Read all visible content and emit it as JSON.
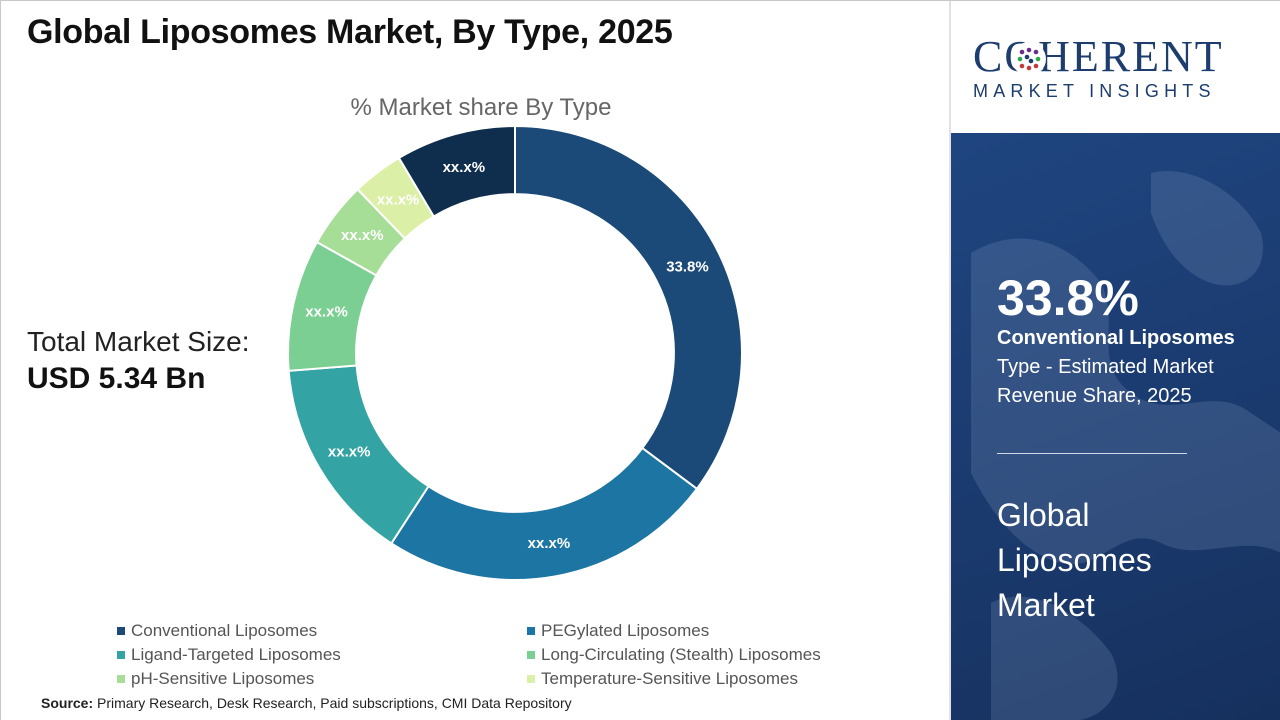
{
  "title": "Global Liposomes Market, By Type, 2025",
  "market_size": {
    "label": "Total Market Size:",
    "value": "USD 5.34 Bn"
  },
  "source": {
    "prefix": "Source:",
    "text": "Primary Research, Desk Research, Paid subscriptions, CMI Data Repository"
  },
  "logo": {
    "word": "COHERENT",
    "sub": "MARKET INSIGHTS"
  },
  "highlight": {
    "percent": "33.8%",
    "segment": "Conventional Liposomes",
    "description": "Type - Estimated Market Revenue Share, 2025",
    "market_name": "Global Liposomes Market"
  },
  "chart_data": {
    "type": "pie",
    "title": "% Market share By Type",
    "hole": 0.7,
    "categories": [
      "Conventional Liposomes",
      "PEGylated Liposomes",
      "Ligand-Targeted Liposomes",
      "Long-Circulating (Stealth) Liposomes",
      "pH-Sensitive Liposomes",
      "Temperature-Sensitive Liposomes",
      ""
    ],
    "values": [
      33.8,
      23.0,
      14.0,
      9.0,
      4.5,
      3.5,
      8.2
    ],
    "labels": [
      "33.8%",
      "xx.x%",
      "xx.x%",
      "xx.x%",
      "xx.x%",
      "xx.x%",
      "xx.x%"
    ],
    "colors": [
      "#1b4a78",
      "#1d75a3",
      "#34a3a3",
      "#7ccf92",
      "#a6de97",
      "#dcefa6",
      "#0f2d4d"
    ],
    "legend": [
      {
        "name": "Conventional Liposomes",
        "color": "#1b4a78"
      },
      {
        "name": "PEGylated Liposomes",
        "color": "#1d75a3"
      },
      {
        "name": "Ligand-Targeted Liposomes",
        "color": "#34a3a3"
      },
      {
        "name": "Long-Circulating (Stealth) Liposomes",
        "color": "#7ccf92"
      },
      {
        "name": "pH-Sensitive Liposomes",
        "color": "#a6de97"
      },
      {
        "name": "Temperature-Sensitive Liposomes",
        "color": "#dcefa6"
      }
    ],
    "legend_position": "bottom"
  }
}
